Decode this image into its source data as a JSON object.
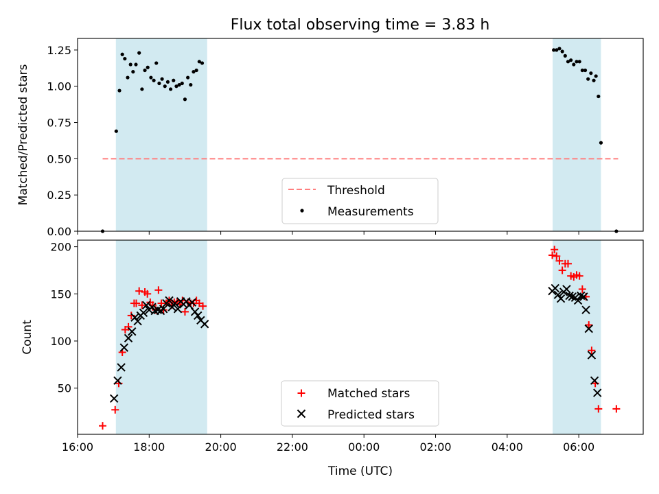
{
  "title": "Flux total observing time = 3.83 h",
  "chart_data": [
    {
      "type": "scatter",
      "ylabel": "Matched/Predicted stars",
      "xlabel": "",
      "xlim_hours": [
        16.0,
        31.8
      ],
      "ylim": [
        0,
        1.33
      ],
      "yticks": [
        0.0,
        0.25,
        0.5,
        0.75,
        1.0,
        1.25
      ],
      "ytick_labels": [
        "0.00",
        "0.25",
        "0.50",
        "0.75",
        "1.00",
        "1.25"
      ],
      "threshold": {
        "name": "Threshold",
        "y": 0.5,
        "x_range_hours": [
          16.7,
          31.1
        ],
        "color": "#ff7f7f"
      },
      "shaded_intervals_hours": [
        [
          17.07,
          19.62
        ],
        [
          29.27,
          30.62
        ]
      ],
      "shade_color": "#add8e6",
      "legend_position": "lower center",
      "series": [
        {
          "name": "Measurements",
          "color": "#000000",
          "points": [
            [
              16.7,
              0.0
            ],
            [
              17.08,
              0.69
            ],
            [
              17.17,
              0.97
            ],
            [
              17.25,
              1.22
            ],
            [
              17.32,
              1.19
            ],
            [
              17.4,
              1.06
            ],
            [
              17.48,
              1.15
            ],
            [
              17.55,
              1.1
            ],
            [
              17.63,
              1.15
            ],
            [
              17.72,
              1.23
            ],
            [
              17.8,
              0.98
            ],
            [
              17.88,
              1.11
            ],
            [
              17.96,
              1.13
            ],
            [
              18.05,
              1.06
            ],
            [
              18.13,
              1.04
            ],
            [
              18.2,
              1.16
            ],
            [
              18.28,
              1.02
            ],
            [
              18.36,
              1.05
            ],
            [
              18.44,
              1.0
            ],
            [
              18.52,
              1.03
            ],
            [
              18.6,
              0.98
            ],
            [
              18.68,
              1.04
            ],
            [
              18.76,
              1.0
            ],
            [
              18.84,
              1.01
            ],
            [
              18.92,
              1.02
            ],
            [
              19.0,
              0.91
            ],
            [
              19.08,
              1.06
            ],
            [
              19.16,
              1.01
            ],
            [
              19.24,
              1.1
            ],
            [
              19.32,
              1.11
            ],
            [
              19.4,
              1.17
            ],
            [
              19.48,
              1.16
            ],
            [
              29.3,
              1.25
            ],
            [
              29.38,
              1.25
            ],
            [
              29.46,
              1.26
            ],
            [
              29.54,
              1.24
            ],
            [
              29.62,
              1.21
            ],
            [
              29.7,
              1.17
            ],
            [
              29.78,
              1.18
            ],
            [
              29.86,
              1.15
            ],
            [
              29.94,
              1.17
            ],
            [
              30.02,
              1.17
            ],
            [
              30.1,
              1.11
            ],
            [
              30.18,
              1.11
            ],
            [
              30.26,
              1.05
            ],
            [
              30.34,
              1.09
            ],
            [
              30.42,
              1.04
            ],
            [
              30.48,
              1.07
            ],
            [
              30.55,
              0.93
            ],
            [
              30.62,
              0.61
            ],
            [
              31.05,
              0.0
            ]
          ]
        }
      ]
    },
    {
      "type": "scatter",
      "ylabel": "Count",
      "xlabel": "Time (UTC)",
      "xlim_hours": [
        16.0,
        31.8
      ],
      "ylim": [
        1,
        207
      ],
      "yticks": [
        50,
        100,
        150,
        200
      ],
      "ytick_labels": [
        "50",
        "100",
        "150",
        "200"
      ],
      "xticks_hours": [
        16,
        18,
        20,
        22,
        24,
        26,
        28,
        30
      ],
      "xtick_labels": [
        "16:00",
        "18:00",
        "20:00",
        "22:00",
        "00:00",
        "02:00",
        "04:00",
        "06:00"
      ],
      "shaded_intervals_hours": [
        [
          17.07,
          19.62
        ],
        [
          29.27,
          30.62
        ]
      ],
      "shade_color": "#add8e6",
      "legend_position": "lower center",
      "series": [
        {
          "name": "Matched stars",
          "marker": "plus",
          "color": "#ff0000",
          "points": [
            [
              16.7,
              10
            ],
            [
              17.05,
              27
            ],
            [
              17.15,
              55
            ],
            [
              17.25,
              88
            ],
            [
              17.33,
              112
            ],
            [
              17.42,
              115
            ],
            [
              17.5,
              127
            ],
            [
              17.58,
              140
            ],
            [
              17.64,
              140
            ],
            [
              17.72,
              153
            ],
            [
              17.8,
              138
            ],
            [
              17.88,
              152
            ],
            [
              17.95,
              150
            ],
            [
              18.03,
              141
            ],
            [
              18.1,
              138
            ],
            [
              18.18,
              133
            ],
            [
              18.26,
              154
            ],
            [
              18.34,
              140
            ],
            [
              18.4,
              133
            ],
            [
              18.48,
              140
            ],
            [
              18.56,
              143
            ],
            [
              18.62,
              138
            ],
            [
              18.7,
              141
            ],
            [
              18.78,
              142
            ],
            [
              18.86,
              139
            ],
            [
              18.93,
              143
            ],
            [
              19.0,
              131
            ],
            [
              19.08,
              141
            ],
            [
              19.16,
              140
            ],
            [
              19.24,
              140
            ],
            [
              19.32,
              143
            ],
            [
              19.4,
              140
            ],
            [
              19.5,
              137
            ],
            [
              29.26,
              191
            ],
            [
              29.32,
              197
            ],
            [
              29.38,
              190
            ],
            [
              29.46,
              185
            ],
            [
              29.54,
              175
            ],
            [
              29.62,
              182
            ],
            [
              29.7,
              182
            ],
            [
              29.78,
              169
            ],
            [
              29.86,
              168
            ],
            [
              29.94,
              170
            ],
            [
              30.02,
              169
            ],
            [
              30.1,
              155
            ],
            [
              30.2,
              147
            ],
            [
              30.28,
              117
            ],
            [
              30.36,
              90
            ],
            [
              30.46,
              55
            ],
            [
              30.55,
              28
            ],
            [
              31.05,
              28
            ]
          ]
        },
        {
          "name": "Predicted stars",
          "marker": "x",
          "color": "#000000",
          "points": [
            [
              17.02,
              39
            ],
            [
              17.12,
              58
            ],
            [
              17.22,
              72
            ],
            [
              17.3,
              93
            ],
            [
              17.42,
              103
            ],
            [
              17.52,
              110
            ],
            [
              17.6,
              125
            ],
            [
              17.68,
              121
            ],
            [
              17.76,
              127
            ],
            [
              17.84,
              130
            ],
            [
              17.92,
              138
            ],
            [
              18.0,
              133
            ],
            [
              18.08,
              136
            ],
            [
              18.16,
              132
            ],
            [
              18.24,
              133
            ],
            [
              18.32,
              132
            ],
            [
              18.4,
              134
            ],
            [
              18.48,
              140
            ],
            [
              18.56,
              143
            ],
            [
              18.64,
              136
            ],
            [
              18.72,
              140
            ],
            [
              18.8,
              134
            ],
            [
              18.88,
              142
            ],
            [
              18.96,
              139
            ],
            [
              19.04,
              142
            ],
            [
              19.12,
              138
            ],
            [
              19.2,
              141
            ],
            [
              19.28,
              131
            ],
            [
              19.36,
              127
            ],
            [
              19.44,
              122
            ],
            [
              19.55,
              118
            ],
            [
              29.26,
              153
            ],
            [
              29.34,
              156
            ],
            [
              29.42,
              149
            ],
            [
              29.5,
              145
            ],
            [
              29.58,
              152
            ],
            [
              29.66,
              155
            ],
            [
              29.74,
              148
            ],
            [
              29.82,
              147
            ],
            [
              29.9,
              146
            ],
            [
              29.98,
              143
            ],
            [
              30.06,
              148
            ],
            [
              30.14,
              147
            ],
            [
              30.2,
              133
            ],
            [
              30.28,
              113
            ],
            [
              30.36,
              85
            ],
            [
              30.44,
              58
            ],
            [
              30.52,
              45
            ]
          ]
        }
      ]
    }
  ]
}
